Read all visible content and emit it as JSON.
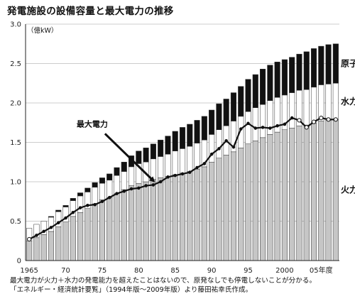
{
  "title": "発電施設の設備容量と最大電力の推移",
  "notes": [
    "最大電力が火力＋水力の発電能力を超えたことはないので、原発なしでも停電しないことが分かる。",
    "「エネルギー・経済統計要覧」（1994年版〜2009年版）より藤田祐幸氏作成。"
  ],
  "chart_data": {
    "type": "bar",
    "subtype": "stacked bar with line",
    "unit_label": "（億kW）",
    "x": [
      1965,
      1966,
      1967,
      1968,
      1969,
      1970,
      1971,
      1972,
      1973,
      1974,
      1975,
      1976,
      1977,
      1978,
      1979,
      1980,
      1981,
      1982,
      1983,
      1984,
      1985,
      1986,
      1987,
      1988,
      1989,
      1990,
      1991,
      1992,
      1993,
      1994,
      1995,
      1996,
      1997,
      1998,
      1999,
      2000,
      2001,
      2002,
      2003,
      2004,
      2005,
      2006,
      2007
    ],
    "x_tick_labels": [
      {
        "year": 1965,
        "label": "1965"
      },
      {
        "year": 1970,
        "label": "70"
      },
      {
        "year": 1975,
        "label": "75"
      },
      {
        "year": 1980,
        "label": "80"
      },
      {
        "year": 1985,
        "label": "85"
      },
      {
        "year": 1990,
        "label": "90"
      },
      {
        "year": 1995,
        "label": "95"
      },
      {
        "year": 2000,
        "label": "2000"
      },
      {
        "year": 2005,
        "label": "05年度"
      }
    ],
    "ylim": [
      0,
      3.0
    ],
    "y_ticks": [
      "0",
      "0.5",
      "1.0",
      "1.5",
      "2.0",
      "2.5",
      "3.0"
    ],
    "grid": true,
    "series": [
      {
        "name": "火力",
        "color": "#c6c6c6",
        "values": [
          0.25,
          0.29,
          0.33,
          0.37,
          0.43,
          0.49,
          0.56,
          0.61,
          0.66,
          0.72,
          0.77,
          0.8,
          0.85,
          0.9,
          0.95,
          0.98,
          1.0,
          1.03,
          1.05,
          1.07,
          1.09,
          1.11,
          1.13,
          1.16,
          1.19,
          1.25,
          1.3,
          1.34,
          1.38,
          1.43,
          1.48,
          1.52,
          1.56,
          1.6,
          1.63,
          1.66,
          1.68,
          1.71,
          1.72,
          1.74,
          1.77,
          1.78,
          1.79
        ]
      },
      {
        "name": "水力",
        "color": "#ffffff",
        "values": [
          0.16,
          0.17,
          0.17,
          0.18,
          0.19,
          0.19,
          0.2,
          0.21,
          0.21,
          0.21,
          0.21,
          0.22,
          0.23,
          0.23,
          0.24,
          0.25,
          0.25,
          0.26,
          0.27,
          0.28,
          0.3,
          0.31,
          0.32,
          0.33,
          0.34,
          0.35,
          0.36,
          0.37,
          0.39,
          0.4,
          0.41,
          0.42,
          0.42,
          0.43,
          0.44,
          0.44,
          0.45,
          0.45,
          0.45,
          0.46,
          0.46,
          0.46,
          0.46
        ]
      },
      {
        "name": "原子力",
        "color": "#111111",
        "values": [
          0.0,
          0.0,
          0.0,
          0.01,
          0.02,
          0.02,
          0.03,
          0.04,
          0.05,
          0.06,
          0.07,
          0.08,
          0.1,
          0.12,
          0.14,
          0.16,
          0.18,
          0.19,
          0.21,
          0.23,
          0.25,
          0.27,
          0.28,
          0.29,
          0.3,
          0.31,
          0.33,
          0.34,
          0.36,
          0.38,
          0.41,
          0.42,
          0.45,
          0.45,
          0.45,
          0.45,
          0.45,
          0.46,
          0.48,
          0.49,
          0.49,
          0.5,
          0.5
        ]
      },
      {
        "name": "最大電力",
        "type": "line",
        "color": "#111111",
        "values": [
          0.27,
          0.32,
          0.37,
          0.42,
          0.48,
          0.54,
          0.61,
          0.67,
          0.7,
          0.71,
          0.75,
          0.8,
          0.85,
          0.88,
          0.91,
          0.92,
          0.95,
          0.96,
          1.0,
          1.06,
          1.08,
          1.1,
          1.12,
          1.18,
          1.23,
          1.35,
          1.42,
          1.52,
          1.44,
          1.67,
          1.74,
          1.68,
          1.69,
          1.68,
          1.71,
          1.73,
          1.81,
          1.78,
          1.69,
          1.76,
          1.81,
          1.79,
          1.79
        ]
      }
    ],
    "annotations": [
      {
        "text": "最大電力",
        "points_to_year": 1982
      }
    ]
  }
}
